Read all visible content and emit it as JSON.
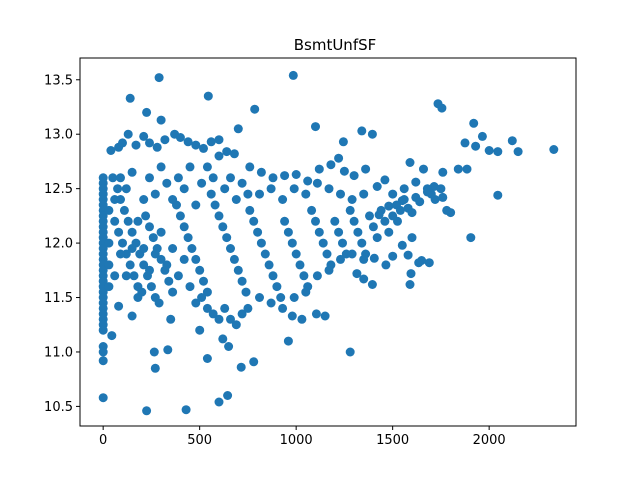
{
  "chart_data": {
    "type": "scatter",
    "title": "BsmtUnfSF",
    "xlabel": "",
    "ylabel": "",
    "xlim": [
      -120,
      2450
    ],
    "ylim": [
      10.32,
      13.7
    ],
    "x_ticks": [
      0,
      500,
      1000,
      1500,
      2000
    ],
    "y_ticks": [
      10.5,
      11.0,
      11.5,
      12.0,
      12.5,
      13.0,
      13.5
    ],
    "x_tick_labels": [
      "0",
      "500",
      "1000",
      "1500",
      "2000"
    ],
    "y_tick_labels": [
      "10.5",
      "11.0",
      "11.5",
      "12.0",
      "12.5",
      "13.0",
      "13.5"
    ],
    "grid": false,
    "marker_color": "#1f77b4",
    "series": [
      {
        "points": [
          [
            0,
            12.6
          ],
          [
            0,
            12.55
          ],
          [
            0,
            12.5
          ],
          [
            0,
            12.45
          ],
          [
            0,
            12.4
          ],
          [
            0,
            12.35
          ],
          [
            0,
            12.3
          ],
          [
            0,
            12.25
          ],
          [
            0,
            12.2
          ],
          [
            0,
            12.15
          ],
          [
            0,
            12.1
          ],
          [
            0,
            12.05
          ],
          [
            0,
            12.0
          ],
          [
            0,
            11.95
          ],
          [
            0,
            11.9
          ],
          [
            0,
            11.85
          ],
          [
            0,
            11.8
          ],
          [
            0,
            11.75
          ],
          [
            0,
            11.7
          ],
          [
            0,
            11.65
          ],
          [
            0,
            11.6
          ],
          [
            0,
            11.55
          ],
          [
            0,
            11.5
          ],
          [
            0,
            11.45
          ],
          [
            0,
            11.4
          ],
          [
            0,
            11.35
          ],
          [
            0,
            11.3
          ],
          [
            0,
            11.25
          ],
          [
            0,
            11.2
          ],
          [
            0,
            11.05
          ],
          [
            0,
            11.0
          ],
          [
            0,
            10.92
          ],
          [
            0,
            10.58
          ],
          [
            290,
            13.52
          ],
          [
            985,
            13.54
          ],
          [
            140,
            13.33
          ],
          [
            545,
            13.35
          ],
          [
            225,
            13.2
          ],
          [
            785,
            13.23
          ],
          [
            300,
            13.13
          ],
          [
            1735,
            13.28
          ],
          [
            1755,
            13.24
          ],
          [
            1920,
            13.1
          ],
          [
            1100,
            13.07
          ],
          [
            1340,
            13.03
          ],
          [
            1395,
            13.0
          ],
          [
            1965,
            12.98
          ],
          [
            2120,
            12.94
          ],
          [
            1875,
            12.92
          ],
          [
            1245,
            12.93
          ],
          [
            1930,
            12.89
          ],
          [
            2000,
            12.85
          ],
          [
            2045,
            12.84
          ],
          [
            2150,
            12.84
          ],
          [
            2335,
            12.86
          ],
          [
            1590,
            12.74
          ],
          [
            1660,
            12.68
          ],
          [
            1840,
            12.68
          ],
          [
            1885,
            12.68
          ],
          [
            1760,
            12.65
          ],
          [
            1715,
            12.52
          ],
          [
            2045,
            12.44
          ],
          [
            1680,
            12.5
          ],
          [
            1620,
            12.42
          ],
          [
            1550,
            12.39
          ],
          [
            1480,
            12.34
          ],
          [
            1800,
            12.28
          ],
          [
            1430,
            12.26
          ],
          [
            1525,
            12.2
          ],
          [
            1905,
            12.05
          ],
          [
            1600,
            12.05
          ],
          [
            1550,
            11.98
          ],
          [
            1580,
            11.89
          ],
          [
            1500,
            11.88
          ],
          [
            1405,
            11.86
          ],
          [
            1465,
            11.8
          ],
          [
            1650,
            11.84
          ],
          [
            1635,
            11.82
          ],
          [
            1690,
            11.82
          ],
          [
            1595,
            11.72
          ],
          [
            1590,
            11.62
          ],
          [
            1395,
            11.62
          ],
          [
            1350,
            11.67
          ],
          [
            1315,
            11.72
          ],
          [
            1280,
            11.0
          ],
          [
            1150,
            11.33
          ],
          [
            1105,
            11.35
          ],
          [
            1030,
            11.3
          ],
          [
            980,
            11.33
          ],
          [
            960,
            11.1
          ],
          [
            780,
            10.91
          ],
          [
            715,
            10.86
          ],
          [
            645,
            10.6
          ],
          [
            600,
            10.54
          ],
          [
            430,
            10.47
          ],
          [
            225,
            10.46
          ],
          [
            270,
            10.85
          ],
          [
            265,
            11.0
          ],
          [
            335,
            11.02
          ],
          [
            540,
            10.94
          ],
          [
            650,
            11.05
          ],
          [
            620,
            11.12
          ],
          [
            500,
            11.2
          ],
          [
            350,
            11.3
          ],
          [
            150,
            11.33
          ],
          [
            80,
            11.42
          ],
          [
            45,
            11.15
          ],
          [
            40,
            12.85
          ],
          [
            80,
            12.88
          ],
          [
            100,
            12.92
          ],
          [
            130,
            13.0
          ],
          [
            170,
            12.9
          ],
          [
            210,
            12.98
          ],
          [
            240,
            12.92
          ],
          [
            280,
            12.88
          ],
          [
            320,
            12.95
          ],
          [
            370,
            13.0
          ],
          [
            400,
            12.97
          ],
          [
            440,
            12.93
          ],
          [
            480,
            12.9
          ],
          [
            520,
            12.87
          ],
          [
            560,
            12.93
          ],
          [
            600,
            12.95
          ],
          [
            640,
            12.84
          ],
          [
            680,
            12.82
          ],
          [
            700,
            13.05
          ],
          [
            760,
            12.7
          ],
          [
            820,
            12.65
          ],
          [
            880,
            12.6
          ],
          [
            940,
            12.62
          ],
          [
            1000,
            12.63
          ],
          [
            1060,
            12.57
          ],
          [
            1120,
            12.68
          ],
          [
            1180,
            12.72
          ],
          [
            1220,
            12.78
          ],
          [
            1250,
            12.66
          ],
          [
            1300,
            12.62
          ],
          [
            1360,
            12.68
          ],
          [
            1420,
            12.52
          ],
          [
            1460,
            12.58
          ],
          [
            1500,
            12.45
          ],
          [
            1560,
            12.5
          ],
          [
            1620,
            12.56
          ],
          [
            1680,
            12.47
          ],
          [
            1720,
            12.4
          ],
          [
            1760,
            12.42
          ],
          [
            1780,
            12.3
          ],
          [
            50,
            12.6
          ],
          [
            75,
            12.5
          ],
          [
            90,
            12.4
          ],
          [
            110,
            12.3
          ],
          [
            130,
            12.2
          ],
          [
            150,
            12.1
          ],
          [
            170,
            12.0
          ],
          [
            190,
            11.9
          ],
          [
            210,
            11.8
          ],
          [
            230,
            11.7
          ],
          [
            250,
            11.6
          ],
          [
            270,
            11.5
          ],
          [
            290,
            11.45
          ],
          [
            60,
            12.2
          ],
          [
            80,
            12.1
          ],
          [
            100,
            12.0
          ],
          [
            120,
            11.9
          ],
          [
            140,
            11.8
          ],
          [
            160,
            11.7
          ],
          [
            180,
            11.6
          ],
          [
            200,
            11.55
          ],
          [
            220,
            12.25
          ],
          [
            240,
            12.15
          ],
          [
            260,
            12.05
          ],
          [
            280,
            11.95
          ],
          [
            300,
            11.85
          ],
          [
            320,
            11.75
          ],
          [
            340,
            11.65
          ],
          [
            360,
            11.55
          ],
          [
            380,
            12.35
          ],
          [
            400,
            12.25
          ],
          [
            420,
            12.15
          ],
          [
            440,
            12.05
          ],
          [
            460,
            11.95
          ],
          [
            480,
            11.85
          ],
          [
            500,
            11.75
          ],
          [
            520,
            11.65
          ],
          [
            540,
            11.55
          ],
          [
            560,
            12.45
          ],
          [
            580,
            12.35
          ],
          [
            600,
            12.25
          ],
          [
            620,
            12.15
          ],
          [
            640,
            12.05
          ],
          [
            660,
            11.95
          ],
          [
            680,
            11.85
          ],
          [
            700,
            11.75
          ],
          [
            720,
            11.65
          ],
          [
            740,
            11.55
          ],
          [
            760,
            12.3
          ],
          [
            780,
            12.2
          ],
          [
            800,
            12.1
          ],
          [
            820,
            12.0
          ],
          [
            840,
            11.9
          ],
          [
            860,
            11.8
          ],
          [
            880,
            11.7
          ],
          [
            900,
            11.6
          ],
          [
            920,
            11.5
          ],
          [
            940,
            12.2
          ],
          [
            960,
            12.1
          ],
          [
            980,
            12.0
          ],
          [
            1000,
            11.9
          ],
          [
            1020,
            11.8
          ],
          [
            1040,
            11.7
          ],
          [
            1060,
            11.6
          ],
          [
            1080,
            12.3
          ],
          [
            1100,
            12.2
          ],
          [
            1120,
            12.1
          ],
          [
            1140,
            12.0
          ],
          [
            1160,
            11.9
          ],
          [
            1180,
            11.8
          ],
          [
            1200,
            12.2
          ],
          [
            1220,
            12.1
          ],
          [
            1240,
            12.0
          ],
          [
            1260,
            11.9
          ],
          [
            1280,
            12.3
          ],
          [
            1300,
            12.2
          ],
          [
            1320,
            12.1
          ],
          [
            1340,
            12.0
          ],
          [
            1360,
            11.9
          ],
          [
            1380,
            12.25
          ],
          [
            1400,
            12.15
          ],
          [
            1420,
            12.05
          ],
          [
            1440,
            12.3
          ],
          [
            1460,
            12.2
          ],
          [
            1480,
            12.1
          ],
          [
            1500,
            12.25
          ],
          [
            1520,
            12.35
          ],
          [
            1540,
            12.3
          ],
          [
            1560,
            12.4
          ],
          [
            1580,
            12.32
          ],
          [
            1600,
            12.28
          ],
          [
            1640,
            12.38
          ],
          [
            1700,
            12.45
          ],
          [
            1750,
            12.5
          ],
          [
            30,
            12.0
          ],
          [
            30,
            11.8
          ],
          [
            30,
            12.3
          ],
          [
            30,
            11.6
          ],
          [
            60,
            11.7
          ],
          [
            60,
            12.4
          ],
          [
            90,
            11.9
          ],
          [
            90,
            12.6
          ],
          [
            120,
            11.7
          ],
          [
            120,
            12.5
          ],
          [
            150,
            11.95
          ],
          [
            150,
            12.65
          ],
          [
            180,
            12.2
          ],
          [
            180,
            11.5
          ],
          [
            210,
            12.4
          ],
          [
            210,
            11.95
          ],
          [
            240,
            12.6
          ],
          [
            240,
            11.75
          ],
          [
            270,
            12.45
          ],
          [
            270,
            11.9
          ],
          [
            300,
            12.7
          ],
          [
            300,
            12.1
          ],
          [
            330,
            12.55
          ],
          [
            330,
            11.8
          ],
          [
            360,
            12.4
          ],
          [
            360,
            11.95
          ],
          [
            390,
            12.6
          ],
          [
            390,
            11.7
          ],
          [
            420,
            12.5
          ],
          [
            420,
            11.85
          ],
          [
            450,
            12.7
          ],
          [
            450,
            11.6
          ],
          [
            480,
            12.35
          ],
          [
            480,
            11.45
          ],
          [
            510,
            12.55
          ],
          [
            510,
            11.5
          ],
          [
            540,
            12.7
          ],
          [
            540,
            11.4
          ],
          [
            570,
            12.6
          ],
          [
            570,
            11.35
          ],
          [
            600,
            12.8
          ],
          [
            600,
            11.3
          ],
          [
            630,
            12.5
          ],
          [
            630,
            11.4
          ],
          [
            660,
            12.6
          ],
          [
            660,
            11.3
          ],
          [
            690,
            12.4
          ],
          [
            690,
            11.25
          ],
          [
            720,
            12.55
          ],
          [
            720,
            11.35
          ],
          [
            750,
            12.45
          ],
          [
            750,
            11.4
          ],
          [
            810,
            12.45
          ],
          [
            810,
            11.5
          ],
          [
            870,
            12.5
          ],
          [
            870,
            11.45
          ],
          [
            930,
            12.4
          ],
          [
            930,
            11.4
          ],
          [
            990,
            12.5
          ],
          [
            990,
            11.5
          ],
          [
            1050,
            12.45
          ],
          [
            1050,
            11.55
          ],
          [
            1110,
            12.55
          ],
          [
            1110,
            11.7
          ],
          [
            1170,
            12.5
          ],
          [
            1170,
            11.75
          ],
          [
            1230,
            12.45
          ],
          [
            1230,
            11.85
          ],
          [
            1290,
            12.4
          ],
          [
            1290,
            11.9
          ],
          [
            1350,
            12.45
          ],
          [
            1350,
            11.85
          ]
        ]
      }
    ]
  }
}
